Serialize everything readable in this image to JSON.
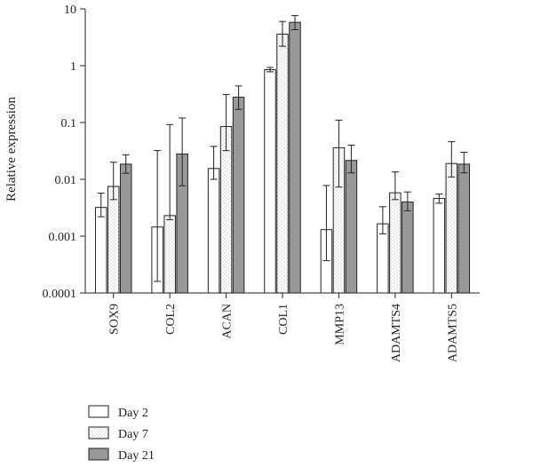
{
  "chart_data": {
    "type": "bar",
    "ylabel": "Relative expression",
    "yscale": "log",
    "ylim": [
      0.0001,
      10
    ],
    "yticks": [
      {
        "value": 0.0001,
        "label": "0.0001"
      },
      {
        "value": 0.001,
        "label": "0.001"
      },
      {
        "value": 0.01,
        "label": "0.01"
      },
      {
        "value": 0.1,
        "label": "0.1"
      },
      {
        "value": 1,
        "label": "1"
      },
      {
        "value": 10,
        "label": "10"
      }
    ],
    "categories": [
      "SOX9",
      "COL2",
      "ACAN",
      "COL1",
      "MMP13",
      "ADAMTS4",
      "ADAMTS5"
    ],
    "series": [
      {
        "name": "Day 2",
        "color": "#ffffff",
        "pattern": "none",
        "values": [
          0.0032,
          0.00145,
          0.0155,
          0.85,
          0.0013,
          0.00165,
          0.0046
        ],
        "err_low": [
          0.0022,
          0.00016,
          0.01,
          0.78,
          0.00037,
          0.0011,
          0.0038
        ],
        "err_high": [
          0.0057,
          0.032,
          0.038,
          0.93,
          0.0078,
          0.0033,
          0.0055
        ]
      },
      {
        "name": "Day 7",
        "color": "#ffffff",
        "pattern": "dots",
        "values": [
          0.0075,
          0.0023,
          0.085,
          3.6,
          0.036,
          0.0058,
          0.019
        ],
        "err_low": [
          0.0044,
          0.00195,
          0.032,
          2.2,
          0.0073,
          0.0044,
          0.011
        ],
        "err_high": [
          0.02,
          0.092,
          0.31,
          6.0,
          0.11,
          0.0135,
          0.046
        ]
      },
      {
        "name": "Day 21",
        "color": "#999999",
        "pattern": "none",
        "values": [
          0.0185,
          0.028,
          0.28,
          5.8,
          0.0215,
          0.004,
          0.0185
        ],
        "err_low": [
          0.0128,
          0.0077,
          0.17,
          4.3,
          0.013,
          0.0028,
          0.013
        ],
        "err_high": [
          0.027,
          0.12,
          0.44,
          7.6,
          0.04,
          0.006,
          0.03
        ]
      }
    ],
    "legend": "bottom-left",
    "grid": false
  }
}
